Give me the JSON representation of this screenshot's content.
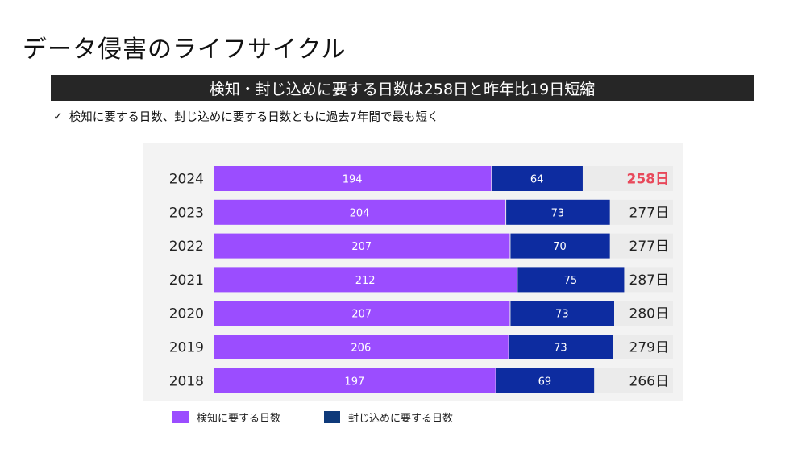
{
  "header": {
    "title": "データ侵害のライフサイクル",
    "banner": "検知・封じ込めに要する日数は258日と昨年比19日短縮",
    "bullet": "検知に要する日数、封じ込めに要する日数ともに過去7年間で最も短く"
  },
  "colors": {
    "detect": "#9b4dff",
    "contain": "#0d2ca0",
    "highlight_total": "#e8485a",
    "legend_contain": "#0f3a7a"
  },
  "chart_data": {
    "type": "bar",
    "orientation": "horizontal",
    "stacked": true,
    "categories": [
      "2024",
      "2023",
      "2022",
      "2021",
      "2020",
      "2019",
      "2018"
    ],
    "series": [
      {
        "name": "検知に要する日数",
        "values": [
          194,
          204,
          207,
          212,
          207,
          206,
          197
        ]
      },
      {
        "name": "封じ込めに要する日数",
        "values": [
          64,
          73,
          70,
          75,
          73,
          73,
          69
        ]
      }
    ],
    "totals": [
      "258日",
      "277日",
      "277日",
      "287日",
      "280日",
      "279日",
      "266日"
    ],
    "highlight_index": 0,
    "xlim": [
      0,
      300
    ],
    "grid": false,
    "legend_position": "bottom-left"
  }
}
